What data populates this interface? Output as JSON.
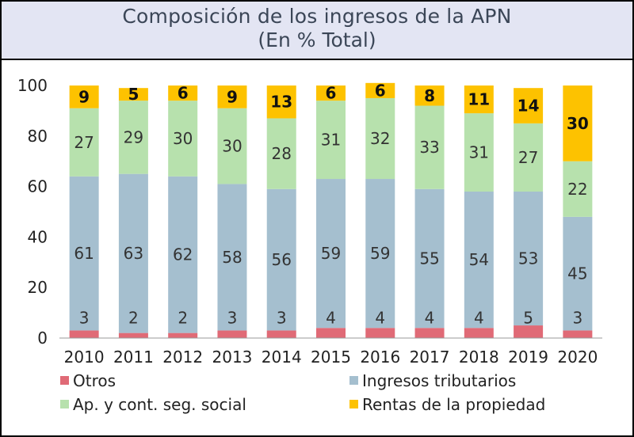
{
  "chart_data": {
    "type": "bar",
    "stacked": true,
    "title": "Composición de los ingresos de la APN",
    "subtitle": "(En % Total)",
    "categories": [
      "2010",
      "2011",
      "2012",
      "2013",
      "2014",
      "2015",
      "2016",
      "2017",
      "2018",
      "2019",
      "2020"
    ],
    "ylim": [
      0,
      100
    ],
    "yticks": [
      0,
      20,
      40,
      60,
      80,
      100
    ],
    "series": [
      {
        "name": "Otros",
        "color": "#e06a76",
        "values": [
          3,
          2,
          2,
          3,
          3,
          4,
          4,
          4,
          4,
          5,
          3
        ],
        "labels": [
          "3",
          "2",
          "2",
          "3",
          "3",
          "4",
          "4",
          "4",
          "4",
          "5",
          "3"
        ]
      },
      {
        "name": "Ingresos tributarios",
        "color": "#a5bfcf",
        "values": [
          61,
          63,
          62,
          58,
          56,
          59,
          59,
          55,
          54,
          53,
          45
        ],
        "labels": [
          "61",
          "63",
          "62",
          "58",
          "56",
          "59",
          "59",
          "55",
          "54",
          "53",
          "45"
        ]
      },
      {
        "name": "Ap. y cont. seg. social",
        "color": "#b7e1ad",
        "values": [
          27,
          29,
          30,
          30,
          28,
          31,
          32,
          33,
          31,
          27,
          22
        ],
        "labels": [
          "27",
          "29",
          "30",
          "30",
          "28",
          "31",
          "32",
          "33",
          "31",
          "27",
          "22"
        ]
      },
      {
        "name": "Rentas de la propiedad",
        "color": "#fdc200",
        "values": [
          9,
          5,
          6,
          9,
          13,
          6,
          6,
          8,
          11,
          14,
          30
        ],
        "labels": [
          "9",
          "5",
          "6",
          "9",
          "13",
          "6",
          "6",
          "8",
          "11",
          "14",
          "30"
        ]
      }
    ],
    "legend": "bottom"
  }
}
